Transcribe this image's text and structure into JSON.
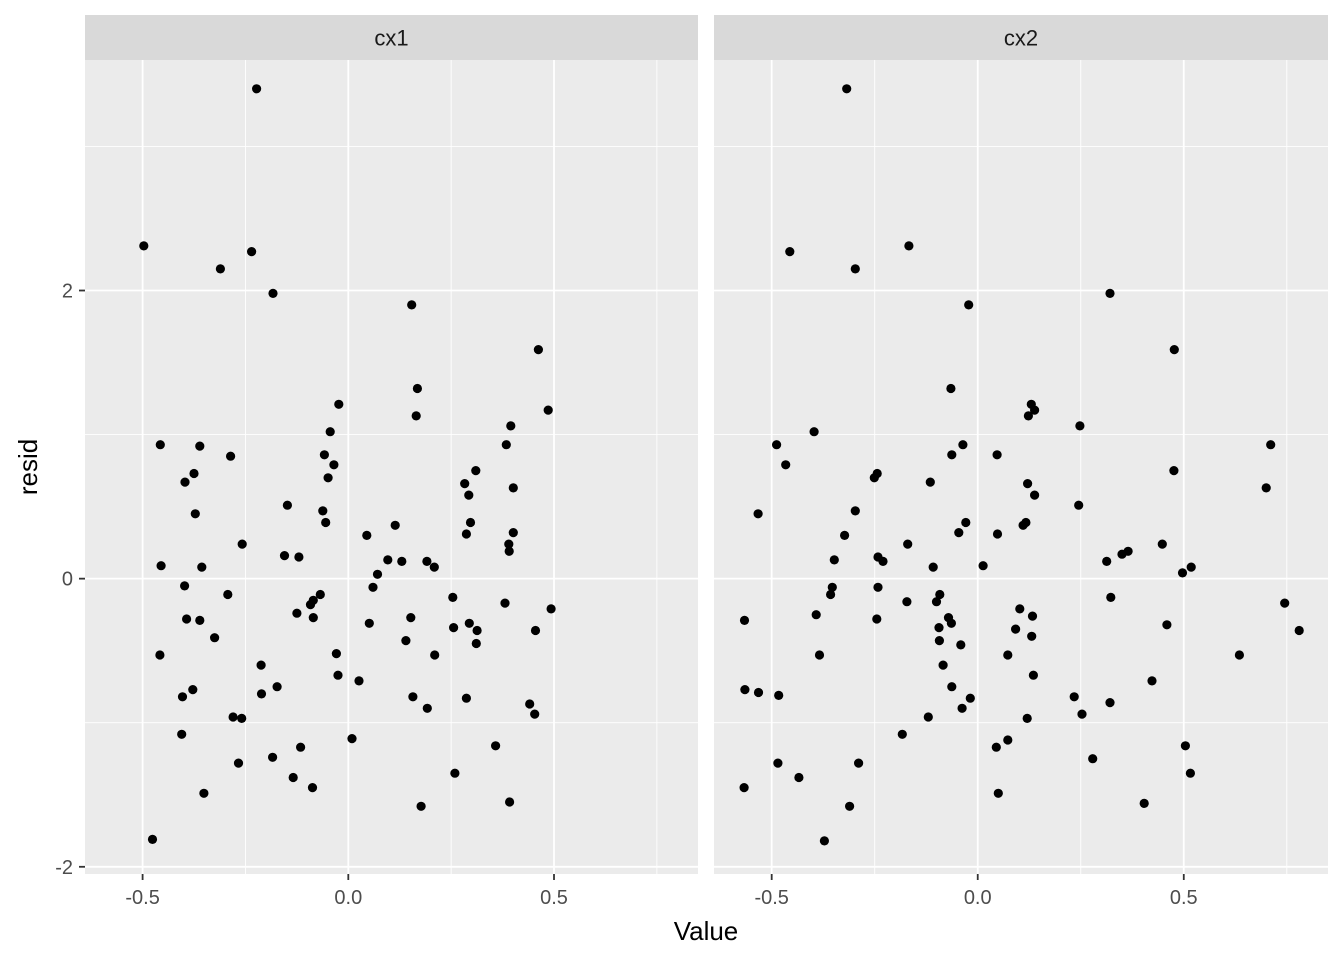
{
  "chart_data": {
    "type": "scatter",
    "xlabel": "Value",
    "ylabel": "resid",
    "panel_background": "#EBEBEB",
    "strip_background": "#D9D9D9",
    "point_color": "#000000",
    "grid": true,
    "shared_y": true,
    "ylim": [
      -2.05,
      3.6
    ],
    "y_ticks": [
      -2,
      0,
      2
    ],
    "y_tick_labels": [
      "-2",
      "0",
      "2"
    ],
    "facets": [
      {
        "name": "cx1",
        "xlim": [
          -0.64,
          0.85
        ],
        "x_ticks": [
          -0.5,
          0.0,
          0.5
        ],
        "x_tick_labels": [
          "-0.5",
          "0.0",
          "0.5"
        ],
        "points": [
          [
            -0.497,
            2.31
          ],
          [
            -0.223,
            3.4
          ],
          [
            -0.235,
            2.27
          ],
          [
            -0.311,
            2.15
          ],
          [
            -0.183,
            1.98
          ],
          [
            0.154,
            1.9
          ],
          [
            0.462,
            1.59
          ],
          [
            0.168,
            1.32
          ],
          [
            -0.023,
            1.21
          ],
          [
            0.486,
            1.17
          ],
          [
            0.165,
            1.13
          ],
          [
            0.395,
            1.06
          ],
          [
            -0.044,
            1.02
          ],
          [
            -0.457,
            0.93
          ],
          [
            -0.361,
            0.92
          ],
          [
            0.384,
            0.93
          ],
          [
            -0.286,
            0.85
          ],
          [
            -0.058,
            0.86
          ],
          [
            -0.035,
            0.79
          ],
          [
            0.31,
            0.75
          ],
          [
            -0.375,
            0.73
          ],
          [
            -0.049,
            0.7
          ],
          [
            -0.397,
            0.67
          ],
          [
            0.283,
            0.66
          ],
          [
            0.401,
            0.63
          ],
          [
            0.293,
            0.58
          ],
          [
            -0.148,
            0.51
          ],
          [
            -0.372,
            0.45
          ],
          [
            -0.062,
            0.47
          ],
          [
            -0.055,
            0.39
          ],
          [
            0.114,
            0.37
          ],
          [
            0.297,
            0.39
          ],
          [
            0.401,
            0.32
          ],
          [
            0.287,
            0.31
          ],
          [
            0.045,
            0.3
          ],
          [
            -0.258,
            0.24
          ],
          [
            0.39,
            0.24
          ],
          [
            0.391,
            0.19
          ],
          [
            -0.155,
            0.16
          ],
          [
            -0.12,
            0.15
          ],
          [
            0.096,
            0.13
          ],
          [
            0.13,
            0.12
          ],
          [
            0.191,
            0.12
          ],
          [
            -0.455,
            0.09
          ],
          [
            -0.356,
            0.08
          ],
          [
            0.209,
            0.08
          ],
          [
            0.071,
            0.03
          ],
          [
            0.06,
            -0.06
          ],
          [
            -0.398,
            -0.05
          ],
          [
            -0.293,
            -0.11
          ],
          [
            -0.068,
            -0.11
          ],
          [
            -0.085,
            -0.15
          ],
          [
            -0.092,
            -0.18
          ],
          [
            0.381,
            -0.17
          ],
          [
            0.254,
            -0.13
          ],
          [
            0.493,
            -0.21
          ],
          [
            -0.125,
            -0.24
          ],
          [
            -0.393,
            -0.28
          ],
          [
            -0.085,
            -0.27
          ],
          [
            -0.361,
            -0.29
          ],
          [
            0.152,
            -0.27
          ],
          [
            0.051,
            -0.31
          ],
          [
            0.294,
            -0.31
          ],
          [
            0.256,
            -0.34
          ],
          [
            0.313,
            -0.36
          ],
          [
            0.455,
            -0.36
          ],
          [
            -0.325,
            -0.41
          ],
          [
            0.14,
            -0.43
          ],
          [
            0.311,
            -0.45
          ],
          [
            -0.029,
            -0.52
          ],
          [
            0.21,
            -0.53
          ],
          [
            -0.458,
            -0.53
          ],
          [
            -0.212,
            -0.6
          ],
          [
            -0.025,
            -0.67
          ],
          [
            0.026,
            -0.71
          ],
          [
            -0.173,
            -0.75
          ],
          [
            -0.378,
            -0.77
          ],
          [
            -0.211,
            -0.8
          ],
          [
            -0.403,
            -0.82
          ],
          [
            0.157,
            -0.82
          ],
          [
            0.287,
            -0.83
          ],
          [
            0.441,
            -0.87
          ],
          [
            0.192,
            -0.9
          ],
          [
            0.453,
            -0.94
          ],
          [
            -0.28,
            -0.96
          ],
          [
            -0.259,
            -0.97
          ],
          [
            -0.405,
            -1.08
          ],
          [
            0.009,
            -1.11
          ],
          [
            -0.116,
            -1.17
          ],
          [
            0.358,
            -1.16
          ],
          [
            -0.184,
            -1.24
          ],
          [
            -0.267,
            -1.28
          ],
          [
            0.259,
            -1.35
          ],
          [
            -0.134,
            -1.38
          ],
          [
            -0.087,
            -1.45
          ],
          [
            -0.351,
            -1.49
          ],
          [
            0.392,
            -1.55
          ],
          [
            0.177,
            -1.58
          ],
          [
            -0.476,
            -1.81
          ]
        ]
      },
      {
        "name": "cx2",
        "xlim": [
          -0.64,
          0.85
        ],
        "x_ticks": [
          -0.5,
          0.0,
          0.5
        ],
        "x_tick_labels": [
          "-0.5",
          "0.0",
          "0.5"
        ],
        "points": [
          [
            -0.318,
            3.4
          ],
          [
            -0.167,
            2.31
          ],
          [
            -0.456,
            2.27
          ],
          [
            -0.297,
            2.15
          ],
          [
            0.321,
            1.98
          ],
          [
            -0.022,
            1.9
          ],
          [
            0.477,
            1.59
          ],
          [
            -0.065,
            1.32
          ],
          [
            0.13,
            1.21
          ],
          [
            0.138,
            1.17
          ],
          [
            0.123,
            1.13
          ],
          [
            0.248,
            1.06
          ],
          [
            -0.397,
            1.02
          ],
          [
            -0.488,
            0.93
          ],
          [
            0.711,
            0.93
          ],
          [
            -0.036,
            0.93
          ],
          [
            -0.063,
            0.86
          ],
          [
            0.047,
            0.86
          ],
          [
            -0.466,
            0.79
          ],
          [
            0.476,
            0.75
          ],
          [
            -0.244,
            0.73
          ],
          [
            -0.251,
            0.7
          ],
          [
            -0.115,
            0.67
          ],
          [
            0.121,
            0.66
          ],
          [
            0.7,
            0.63
          ],
          [
            0.138,
            0.58
          ],
          [
            0.245,
            0.51
          ],
          [
            -0.297,
            0.47
          ],
          [
            -0.533,
            0.45
          ],
          [
            -0.029,
            0.39
          ],
          [
            0.11,
            0.37
          ],
          [
            0.117,
            0.39
          ],
          [
            -0.046,
            0.32
          ],
          [
            0.048,
            0.31
          ],
          [
            -0.323,
            0.3
          ],
          [
            -0.17,
            0.24
          ],
          [
            0.448,
            0.24
          ],
          [
            0.365,
            0.19
          ],
          [
            0.35,
            0.17
          ],
          [
            -0.242,
            0.15
          ],
          [
            -0.23,
            0.12
          ],
          [
            -0.348,
            0.13
          ],
          [
            0.313,
            0.12
          ],
          [
            0.518,
            0.08
          ],
          [
            -0.108,
            0.08
          ],
          [
            0.013,
            0.09
          ],
          [
            0.497,
            0.04
          ],
          [
            -0.242,
            -0.06
          ],
          [
            -0.353,
            -0.06
          ],
          [
            -0.092,
            -0.11
          ],
          [
            -0.357,
            -0.11
          ],
          [
            -0.1,
            -0.16
          ],
          [
            -0.172,
            -0.16
          ],
          [
            0.323,
            -0.13
          ],
          [
            0.745,
            -0.17
          ],
          [
            0.102,
            -0.21
          ],
          [
            -0.392,
            -0.25
          ],
          [
            0.133,
            -0.26
          ],
          [
            -0.245,
            -0.28
          ],
          [
            -0.071,
            -0.27
          ],
          [
            -0.566,
            -0.29
          ],
          [
            -0.064,
            -0.31
          ],
          [
            0.459,
            -0.32
          ],
          [
            -0.094,
            -0.34
          ],
          [
            0.092,
            -0.35
          ],
          [
            0.78,
            -0.36
          ],
          [
            0.131,
            -0.4
          ],
          [
            -0.093,
            -0.43
          ],
          [
            -0.041,
            -0.46
          ],
          [
            0.135,
            -0.67
          ],
          [
            -0.384,
            -0.53
          ],
          [
            0.635,
            -0.53
          ],
          [
            0.073,
            -0.53
          ],
          [
            -0.084,
            -0.6
          ],
          [
            -0.063,
            -0.75
          ],
          [
            0.423,
            -0.71
          ],
          [
            -0.565,
            -0.77
          ],
          [
            -0.532,
            -0.79
          ],
          [
            -0.483,
            -0.81
          ],
          [
            0.234,
            -0.82
          ],
          [
            -0.018,
            -0.83
          ],
          [
            0.321,
            -0.86
          ],
          [
            -0.038,
            -0.9
          ],
          [
            0.253,
            -0.94
          ],
          [
            -0.12,
            -0.96
          ],
          [
            0.12,
            -0.97
          ],
          [
            -0.183,
            -1.08
          ],
          [
            0.073,
            -1.12
          ],
          [
            0.045,
            -1.17
          ],
          [
            0.504,
            -1.16
          ],
          [
            0.279,
            -1.25
          ],
          [
            -0.485,
            -1.28
          ],
          [
            -0.289,
            -1.28
          ],
          [
            0.516,
            -1.35
          ],
          [
            -0.434,
            -1.38
          ],
          [
            -0.567,
            -1.45
          ],
          [
            0.05,
            -1.49
          ],
          [
            0.404,
            -1.56
          ],
          [
            -0.311,
            -1.58
          ],
          [
            -0.372,
            -1.82
          ]
        ]
      }
    ]
  }
}
